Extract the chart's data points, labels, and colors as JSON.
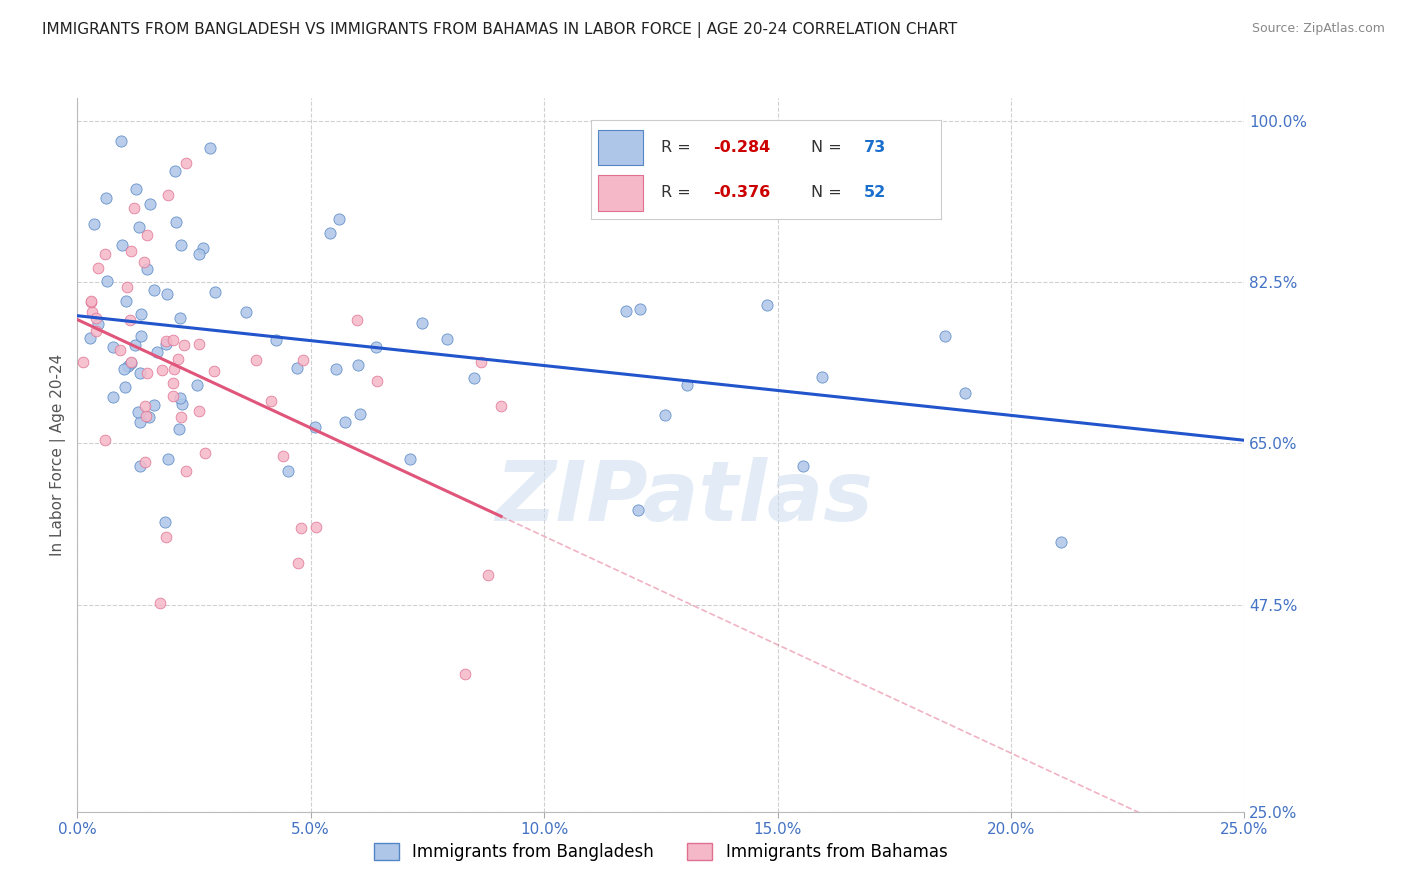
{
  "title": "IMMIGRANTS FROM BANGLADESH VS IMMIGRANTS FROM BAHAMAS IN LABOR FORCE | AGE 20-24 CORRELATION CHART",
  "source": "Source: ZipAtlas.com",
  "ylabel": "In Labor Force | Age 20-24",
  "series": [
    {
      "name": "Immigrants from Bangladesh",
      "R": -0.284,
      "N": 73,
      "color": "#aec6e8",
      "edge_color": "#5585c5",
      "line_color": "#2255cc"
    },
    {
      "name": "Immigrants from Bahamas",
      "R": -0.376,
      "N": 52,
      "color": "#f5b8c8",
      "edge_color": "#e07090",
      "line_color": "#e0557a"
    }
  ],
  "xlim": [
    0.0,
    0.25
  ],
  "ylim": [
    0.25,
    1.025
  ],
  "xticks": [
    0.0,
    0.05,
    0.1,
    0.15,
    0.2,
    0.25
  ],
  "xtick_labels": [
    "0.0%",
    "5.0%",
    "10.0%",
    "15.0%",
    "20.0%",
    "25.0%"
  ],
  "yticks_right": [
    1.0,
    0.825,
    0.65,
    0.475,
    0.25
  ],
  "ytick_labels_right": [
    "100.0%",
    "82.5%",
    "65.0%",
    "47.5%",
    "25.0%"
  ],
  "grid_color": "#d0d0d0",
  "background_color": "#ffffff",
  "watermark": "ZIPatlas",
  "title_fontsize": 11,
  "tick_color": "#4472c4",
  "legend_R_color": "#cc0000",
  "legend_N_color": "#1a6fcc"
}
